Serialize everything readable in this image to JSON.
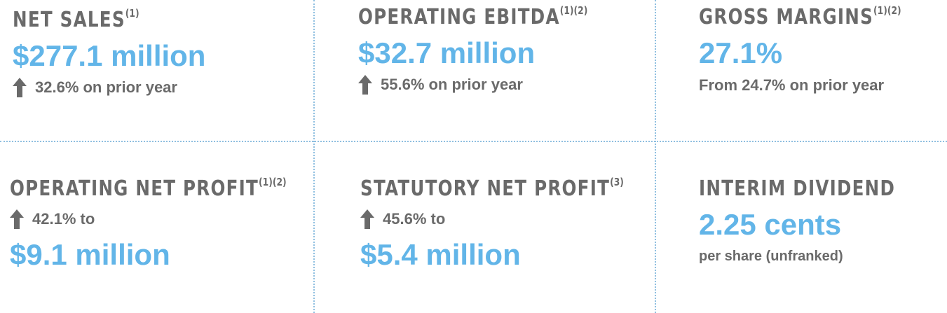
{
  "colors": {
    "value": "#62b5e8",
    "label": "#6a6a6a",
    "divider": "#8fbfe0"
  },
  "cards": [
    {
      "title": "NET SALES",
      "note": "(1)",
      "value": "$277.1 million",
      "change": "32.6% on prior year",
      "icon": "up-arrow-icon"
    },
    {
      "title": "OPERATING EBITDA",
      "note": "(1)(2)",
      "value": "$32.7 million",
      "change": "55.6% on prior year",
      "icon": "up-arrow-icon"
    },
    {
      "title": "GROSS MARGINS",
      "note": "(1)(2)",
      "value": "27.1%",
      "change": "From 24.7% on prior year"
    },
    {
      "title": "OPERATING NET PROFIT",
      "note": "(1)(2)",
      "change": "42.1% to",
      "value": "$9.1 million",
      "icon": "up-arrow-icon"
    },
    {
      "title": "STATUTORY NET PROFIT",
      "note": "(3)",
      "change": "45.6% to",
      "value": "$5.4 million",
      "icon": "up-arrow-icon"
    },
    {
      "title": "INTERIM DIVIDEND",
      "value": "2.25 cents",
      "change": "per share (unfranked)"
    }
  ]
}
